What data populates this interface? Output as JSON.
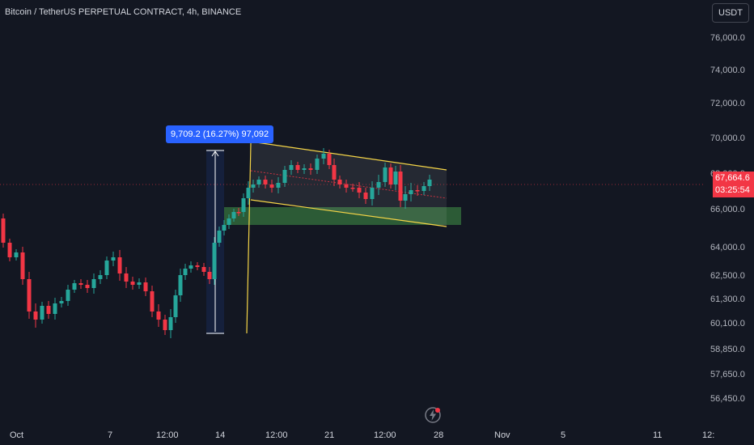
{
  "header": {
    "title": "Bitcoin / TetherUS PERPETUAL CONTRACT, 4h, BINANCE"
  },
  "price_axis": {
    "currency": "USDT",
    "labels": [
      {
        "value": 76000,
        "text": "76,000.0"
      },
      {
        "value": 74000,
        "text": "74,000.0"
      },
      {
        "value": 72000,
        "text": "72,000.0"
      },
      {
        "value": 70000,
        "text": "70,000.0"
      },
      {
        "value": 68000,
        "text": "68,000.0"
      },
      {
        "value": 66000,
        "text": "66,000.0"
      },
      {
        "value": 64000,
        "text": "64,000.0"
      },
      {
        "value": 62500,
        "text": "62,500.0"
      },
      {
        "value": 61300,
        "text": "61,300.0"
      },
      {
        "value": 60100,
        "text": "60,100.0"
      },
      {
        "value": 58850,
        "text": "58,850.0"
      },
      {
        "value": 57650,
        "text": "57,650.0"
      },
      {
        "value": 56450,
        "text": "56,450.0"
      }
    ],
    "current_price": "67,664.6",
    "countdown": "03:25:54"
  },
  "time_axis": {
    "labels": [
      "Oct",
      "7",
      "12:00",
      "14",
      "12:00",
      "21",
      "12:00",
      "28",
      "Nov",
      "5",
      "11",
      "12:"
    ]
  },
  "measure_tool": {
    "text": "9,709.2 (16.27%) 97,092"
  },
  "colors": {
    "up": "#26a69a",
    "down": "#f23645",
    "channel": "#f5d547",
    "measure": "#2962ff",
    "zone": "#4caf50"
  },
  "icons": {
    "bolt": "bolt-icon"
  }
}
